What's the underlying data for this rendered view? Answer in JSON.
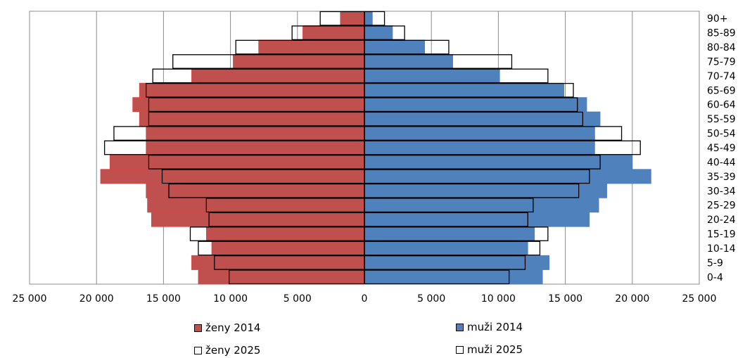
{
  "chart_data": {
    "type": "bar",
    "orientation": "horizontal",
    "subtype": "population-pyramid",
    "categories": [
      "0-4",
      "5-9",
      "10-14",
      "15-19",
      "20-24",
      "25-29",
      "30-34",
      "35-39",
      "40-44",
      "45-49",
      "50-54",
      "55-59",
      "60-64",
      "65-69",
      "70-74",
      "75-79",
      "80-84",
      "85-89",
      "90+"
    ],
    "series": [
      {
        "name": "ženy 2014",
        "side": "left",
        "style": "filled",
        "color": "#C0504D",
        "values": [
          12400,
          12900,
          11400,
          11800,
          15900,
          16200,
          16300,
          19700,
          19000,
          16300,
          16300,
          16800,
          17300,
          16800,
          12900,
          9800,
          7900,
          4600,
          1800
        ]
      },
      {
        "name": "muži 2014",
        "side": "right",
        "style": "filled",
        "color": "#4F81BD",
        "values": [
          13300,
          13800,
          12200,
          12700,
          16800,
          17500,
          18100,
          21400,
          20000,
          17200,
          17200,
          17600,
          16600,
          14900,
          10100,
          6600,
          4500,
          2100,
          600
        ]
      },
      {
        "name": "ženy 2025",
        "side": "left",
        "style": "outline",
        "color": "#000000",
        "values": [
          10100,
          11200,
          12400,
          13000,
          11600,
          11800,
          14600,
          15100,
          16100,
          19400,
          18700,
          16100,
          16100,
          16300,
          15800,
          14300,
          9600,
          5400,
          3300
        ]
      },
      {
        "name": "muži 2025",
        "side": "right",
        "style": "outline",
        "color": "#000000",
        "values": [
          10800,
          12000,
          13100,
          13700,
          12200,
          12600,
          16000,
          16800,
          17600,
          20600,
          19200,
          16300,
          15900,
          15600,
          13700,
          11000,
          6300,
          3000,
          1500
        ]
      }
    ],
    "xticks": [
      "25 000",
      "20 000",
      "15 000",
      "10 000",
      "5 000",
      "0",
      "5 000",
      "10 000",
      "15 000",
      "20 000",
      "25 000"
    ],
    "xlim": [
      -25000,
      25000
    ],
    "grid": "vertical",
    "legend": "bottom",
    "title": "",
    "xlabel": "",
    "ylabel": ""
  }
}
